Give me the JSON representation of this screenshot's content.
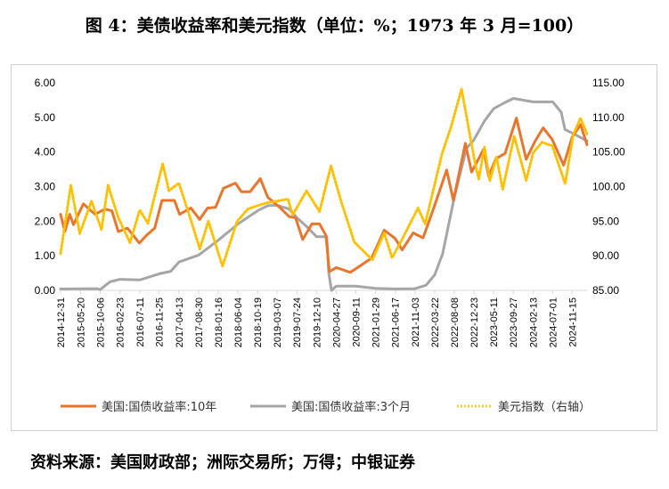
{
  "title": "图 4：美债收益率和美元指数（单位：%；1973 年 3 月=100）",
  "source": "资料来源：美国财政部；洲际交易所；万得；中银证券",
  "colors": {
    "yield10y": "#e8762d",
    "yield3m": "#a6a6a6",
    "dxy": "#ffc000"
  },
  "chart_data": {
    "type": "line",
    "title": "",
    "y_left": {
      "range": [
        0,
        6
      ],
      "ticks": [
        "0.00",
        "1.00",
        "2.00",
        "3.00",
        "4.00",
        "5.00",
        "6.00"
      ]
    },
    "y_right": {
      "range": [
        85,
        115
      ],
      "ticks": [
        "85.00",
        "90.00",
        "95.00",
        "100.00",
        "105.00",
        "110.00",
        "115.00"
      ]
    },
    "x_ticks": [
      "2014-12-31",
      "2015-05-20",
      "2015-10-06",
      "2016-02-23",
      "2016-07-11",
      "2016-11-25",
      "2017-04-13",
      "2017-08-30",
      "2018-01-16",
      "2018-06-04",
      "2018-10-19",
      "2019-03-07",
      "2019-07-24",
      "2019-12-10",
      "2020-04-27",
      "2020-09-11",
      "2021-01-29",
      "2021-06-17",
      "2021-11-03",
      "2022-03-22",
      "2022-08-08",
      "2022-12-23",
      "2023-05-11",
      "2023-09-27",
      "2024-02-13",
      "2024-07-01",
      "2024-11-15"
    ],
    "series": [
      {
        "name": "美国:国债收益率:10年",
        "axis": "left",
        "style": "solid",
        "points": [
          [
            "2014-12-31",
            2.2
          ],
          [
            "2015-01-30",
            1.7
          ],
          [
            "2015-03-06",
            2.2
          ],
          [
            "2015-04-01",
            1.9
          ],
          [
            "2015-06-10",
            2.5
          ],
          [
            "2015-07-20",
            2.35
          ],
          [
            "2015-09-01",
            2.2
          ],
          [
            "2015-11-09",
            2.35
          ],
          [
            "2015-12-28",
            2.3
          ],
          [
            "2016-02-11",
            1.7
          ],
          [
            "2016-04-15",
            1.8
          ],
          [
            "2016-07-08",
            1.37
          ],
          [
            "2016-08-30",
            1.6
          ],
          [
            "2016-10-25",
            1.8
          ],
          [
            "2016-12-15",
            2.6
          ],
          [
            "2017-03-13",
            2.6
          ],
          [
            "2017-04-18",
            2.2
          ],
          [
            "2017-07-07",
            2.38
          ],
          [
            "2017-09-07",
            2.05
          ],
          [
            "2017-11-01",
            2.38
          ],
          [
            "2017-12-28",
            2.4
          ],
          [
            "2018-02-21",
            2.95
          ],
          [
            "2018-05-17",
            3.1
          ],
          [
            "2018-06-28",
            2.85
          ],
          [
            "2018-08-28",
            2.85
          ],
          [
            "2018-11-08",
            3.23
          ],
          [
            "2018-12-31",
            2.69
          ],
          [
            "2019-03-25",
            2.4
          ],
          [
            "2019-05-31",
            2.13
          ],
          [
            "2019-07-15",
            2.1
          ],
          [
            "2019-09-03",
            1.47
          ],
          [
            "2019-11-07",
            1.92
          ],
          [
            "2019-12-31",
            1.92
          ],
          [
            "2020-02-14",
            1.59
          ],
          [
            "2020-03-09",
            0.54
          ],
          [
            "2020-04-27",
            0.66
          ],
          [
            "2020-08-04",
            0.52
          ],
          [
            "2020-10-01",
            0.68
          ],
          [
            "2020-12-31",
            0.93
          ],
          [
            "2021-02-26",
            1.44
          ],
          [
            "2021-03-31",
            1.74
          ],
          [
            "2021-06-17",
            1.5
          ],
          [
            "2021-08-04",
            1.17
          ],
          [
            "2021-10-21",
            1.66
          ],
          [
            "2021-12-30",
            1.52
          ],
          [
            "2022-02-15",
            2.05
          ],
          [
            "2022-04-07",
            2.66
          ],
          [
            "2022-06-14",
            3.48
          ],
          [
            "2022-08-01",
            2.6
          ],
          [
            "2022-10-24",
            4.25
          ],
          [
            "2022-12-07",
            3.42
          ],
          [
            "2023-03-02",
            4.08
          ],
          [
            "2023-04-06",
            3.3
          ],
          [
            "2023-05-26",
            3.8
          ],
          [
            "2023-07-31",
            3.96
          ],
          [
            "2023-10-19",
            4.98
          ],
          [
            "2023-12-27",
            3.79
          ],
          [
            "2024-02-26",
            4.3
          ],
          [
            "2024-04-25",
            4.7
          ],
          [
            "2024-06-28",
            4.36
          ],
          [
            "2024-09-16",
            3.62
          ],
          [
            "2024-11-15",
            4.43
          ],
          [
            "2025-01-14",
            4.79
          ],
          [
            "2025-02-28",
            4.21
          ]
        ]
      },
      {
        "name": "美国:国债收益率:3个月",
        "axis": "left",
        "style": "solid",
        "points": [
          [
            "2014-12-31",
            0.04
          ],
          [
            "2015-09-15",
            0.05
          ],
          [
            "2015-10-06",
            0.02
          ],
          [
            "2015-12-15",
            0.25
          ],
          [
            "2016-02-23",
            0.32
          ],
          [
            "2016-07-11",
            0.3
          ],
          [
            "2016-11-25",
            0.48
          ],
          [
            "2017-02-15",
            0.55
          ],
          [
            "2017-04-13",
            0.82
          ],
          [
            "2017-08-30",
            1.02
          ],
          [
            "2018-01-16",
            1.45
          ],
          [
            "2018-06-04",
            1.92
          ],
          [
            "2018-10-19",
            2.3
          ],
          [
            "2018-12-31",
            2.45
          ],
          [
            "2019-03-07",
            2.46
          ],
          [
            "2019-05-31",
            2.35
          ],
          [
            "2019-07-24",
            2.1
          ],
          [
            "2019-09-30",
            1.85
          ],
          [
            "2019-12-10",
            1.55
          ],
          [
            "2020-02-20",
            1.55
          ],
          [
            "2020-03-05",
            0.5
          ],
          [
            "2020-03-24",
            0.0
          ],
          [
            "2020-04-27",
            0.12
          ],
          [
            "2020-09-11",
            0.12
          ],
          [
            "2021-01-29",
            0.06
          ],
          [
            "2021-06-17",
            0.04
          ],
          [
            "2021-11-03",
            0.05
          ],
          [
            "2022-01-20",
            0.15
          ],
          [
            "2022-03-22",
            0.45
          ],
          [
            "2022-05-16",
            1.05
          ],
          [
            "2022-08-08",
            2.7
          ],
          [
            "2022-10-31",
            4.1
          ],
          [
            "2022-12-23",
            4.35
          ],
          [
            "2023-03-08",
            4.9
          ],
          [
            "2023-05-11",
            5.25
          ],
          [
            "2023-07-25",
            5.42
          ],
          [
            "2023-09-27",
            5.55
          ],
          [
            "2024-02-13",
            5.45
          ],
          [
            "2024-07-01",
            5.45
          ],
          [
            "2024-08-30",
            5.15
          ],
          [
            "2024-09-25",
            4.65
          ],
          [
            "2024-11-15",
            4.55
          ],
          [
            "2025-02-28",
            4.32
          ]
        ]
      },
      {
        "name": "美元指数（右轴）",
        "axis": "right",
        "style": "dotted",
        "points": [
          [
            "2014-12-31",
            90.3
          ],
          [
            "2015-03-13",
            100.2
          ],
          [
            "2015-05-15",
            93.2
          ],
          [
            "2015-08-06",
            97.9
          ],
          [
            "2015-10-15",
            93.8
          ],
          [
            "2015-12-01",
            100.2
          ],
          [
            "2016-02-11",
            95.5
          ],
          [
            "2016-05-03",
            91.9
          ],
          [
            "2016-07-11",
            96.6
          ],
          [
            "2016-09-07",
            94.7
          ],
          [
            "2016-12-20",
            103.3
          ],
          [
            "2017-02-02",
            99.4
          ],
          [
            "2017-04-13",
            100.5
          ],
          [
            "2017-06-30",
            95.6
          ],
          [
            "2017-09-08",
            91.0
          ],
          [
            "2017-11-07",
            95.0
          ],
          [
            "2018-02-15",
            88.5
          ],
          [
            "2018-05-29",
            95.0
          ],
          [
            "2018-08-15",
            96.8
          ],
          [
            "2018-12-14",
            97.6
          ],
          [
            "2019-05-22",
            98.2
          ],
          [
            "2019-06-25",
            95.9
          ],
          [
            "2019-09-30",
            99.4
          ],
          [
            "2019-12-31",
            96.4
          ],
          [
            "2020-03-20",
            103.0
          ],
          [
            "2020-05-29",
            98.0
          ],
          [
            "2020-08-31",
            92.0
          ],
          [
            "2021-01-06",
            89.4
          ],
          [
            "2021-03-31",
            93.3
          ],
          [
            "2021-05-25",
            89.7
          ],
          [
            "2021-07-30",
            92.2
          ],
          [
            "2021-11-24",
            96.9
          ],
          [
            "2022-01-14",
            94.6
          ],
          [
            "2022-05-13",
            104.8
          ],
          [
            "2022-07-14",
            108.6
          ],
          [
            "2022-09-27",
            114.1
          ],
          [
            "2022-12-30",
            103.5
          ],
          [
            "2023-01-26",
            101.1
          ],
          [
            "2023-03-08",
            105.7
          ],
          [
            "2023-04-14",
            100.8
          ],
          [
            "2023-05-31",
            104.3
          ],
          [
            "2023-07-14",
            99.6
          ],
          [
            "2023-10-03",
            107.3
          ],
          [
            "2023-12-27",
            100.9
          ],
          [
            "2024-02-14",
            104.9
          ],
          [
            "2024-04-16",
            106.4
          ],
          [
            "2024-06-28",
            105.9
          ],
          [
            "2024-09-27",
            100.4
          ],
          [
            "2024-11-22",
            107.5
          ],
          [
            "2025-01-13",
            109.9
          ],
          [
            "2025-02-28",
            107.6
          ]
        ]
      }
    ],
    "legend": {
      "position": "bottom",
      "items": [
        "美国:国债收益率:10年",
        "美国:国债收益率:3个月",
        "美元指数（右轴）"
      ]
    }
  }
}
